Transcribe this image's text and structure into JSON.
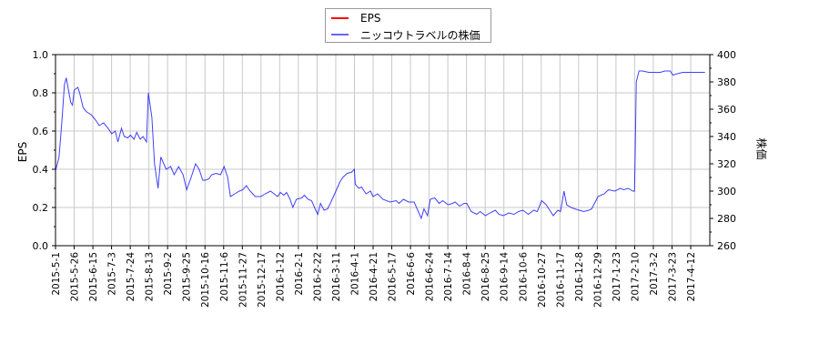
{
  "chart_data": {
    "type": "line",
    "title": "",
    "legend": {
      "position": "top-center",
      "entries": [
        {
          "label": "EPS",
          "color": "#ff0000"
        },
        {
          "label": "ニッコウトラベルの株価",
          "color": "#0000ff"
        }
      ]
    },
    "xlabel": "",
    "ylabel_left": "EPS",
    "ylabel_right": "株価",
    "ylim_left": [
      0.0,
      1.0
    ],
    "yticks_left": [
      "0.0",
      "0.2",
      "0.4",
      "0.6",
      "0.8",
      "1.0"
    ],
    "ylim_right": [
      260,
      400
    ],
    "yticks_right": [
      "260",
      "280",
      "300",
      "320",
      "340",
      "360",
      "380",
      "400"
    ],
    "grid": true,
    "x_tick_labels": [
      "2015-5-1",
      "2015-5-26",
      "2015-6-15",
      "2015-7-3",
      "2015-7-24",
      "2015-8-13",
      "2015-9-2",
      "2015-9-25",
      "2015-10-16",
      "2015-11-6",
      "2015-11-27",
      "2015-12-17",
      "2016-1-12",
      "2016-2-1",
      "2016-2-22",
      "2016-3-11",
      "2016-4-1",
      "2016-4-21",
      "2016-5-17",
      "2016-6-6",
      "2016-6-24",
      "2016-7-14",
      "2016-8-4",
      "2016-8-25",
      "2016-9-14",
      "2016-10-6",
      "2016-10-27",
      "2016-11-17",
      "2016-12-8",
      "2016-12-29",
      "2017-1-23",
      "2017-2-10",
      "2017-3-2",
      "2017-3-23",
      "2017-4-12"
    ],
    "series": [
      {
        "name": "EPS",
        "axis": "left",
        "color": "#ff0000",
        "values": []
      },
      {
        "name": "ニッコウトラベルの株価",
        "axis": "right",
        "color": "#0000ff",
        "points": [
          [
            "2015-5-1",
            315
          ],
          [
            "2015-5-5",
            325
          ],
          [
            "2015-5-8",
            350
          ],
          [
            "2015-5-11",
            378
          ],
          [
            "2015-5-13",
            383
          ],
          [
            "2015-5-15",
            376
          ],
          [
            "2015-5-18",
            365
          ],
          [
            "2015-5-20",
            363
          ],
          [
            "2015-5-22",
            374
          ],
          [
            "2015-5-26",
            376
          ],
          [
            "2015-5-28",
            372
          ],
          [
            "2015-6-1",
            361
          ],
          [
            "2015-6-5",
            358
          ],
          [
            "2015-6-10",
            356
          ],
          [
            "2015-6-15",
            352
          ],
          [
            "2015-6-19",
            348
          ],
          [
            "2015-6-24",
            350
          ],
          [
            "2015-6-29",
            346
          ],
          [
            "2015-7-3",
            342
          ],
          [
            "2015-7-7",
            344
          ],
          [
            "2015-7-10",
            336
          ],
          [
            "2015-7-14",
            346
          ],
          [
            "2015-7-17",
            340
          ],
          [
            "2015-7-21",
            339
          ],
          [
            "2015-7-24",
            341
          ],
          [
            "2015-7-28",
            338
          ],
          [
            "2015-7-31",
            343
          ],
          [
            "2015-8-4",
            338
          ],
          [
            "2015-8-7",
            340
          ],
          [
            "2015-8-11",
            336
          ],
          [
            "2015-8-13",
            372
          ],
          [
            "2015-8-17",
            354
          ],
          [
            "2015-8-20",
            320
          ],
          [
            "2015-8-24",
            302
          ],
          [
            "2015-8-27",
            325
          ],
          [
            "2015-9-2",
            316
          ],
          [
            "2015-9-7",
            318
          ],
          [
            "2015-9-11",
            312
          ],
          [
            "2015-9-16",
            318
          ],
          [
            "2015-9-21",
            312
          ],
          [
            "2015-9-25",
            301
          ],
          [
            "2015-9-30",
            310
          ],
          [
            "2015-10-5",
            320
          ],
          [
            "2015-10-9",
            316
          ],
          [
            "2015-10-13",
            308
          ],
          [
            "2015-10-16",
            308
          ],
          [
            "2015-10-20",
            309
          ],
          [
            "2015-10-23",
            312
          ],
          [
            "2015-10-28",
            313
          ],
          [
            "2015-11-2",
            312
          ],
          [
            "2015-11-6",
            318
          ],
          [
            "2015-11-10",
            310
          ],
          [
            "2015-11-13",
            296
          ],
          [
            "2015-11-18",
            298
          ],
          [
            "2015-11-23",
            300
          ],
          [
            "2015-11-27",
            301
          ],
          [
            "2015-12-1",
            304
          ],
          [
            "2015-12-4",
            301
          ],
          [
            "2015-12-8",
            298
          ],
          [
            "2015-12-11",
            296
          ],
          [
            "2015-12-17",
            296
          ],
          [
            "2015-12-22",
            298
          ],
          [
            "2015-12-28",
            300
          ],
          [
            "2016-1-5",
            296
          ],
          [
            "2016-1-8",
            299
          ],
          [
            "2016-1-12",
            297
          ],
          [
            "2016-1-15",
            299
          ],
          [
            "2016-1-19",
            294
          ],
          [
            "2016-1-22",
            288
          ],
          [
            "2016-1-26",
            294
          ],
          [
            "2016-2-1",
            295
          ],
          [
            "2016-2-4",
            297
          ],
          [
            "2016-2-8",
            294
          ],
          [
            "2016-2-12",
            293
          ],
          [
            "2016-2-16",
            287
          ],
          [
            "2016-2-19",
            283
          ],
          [
            "2016-2-22",
            291
          ],
          [
            "2016-2-26",
            286
          ],
          [
            "2016-3-1",
            287
          ],
          [
            "2016-3-4",
            291
          ],
          [
            "2016-3-11",
            301
          ],
          [
            "2016-3-15",
            307
          ],
          [
            "2016-3-18",
            310
          ],
          [
            "2016-3-23",
            313
          ],
          [
            "2016-3-28",
            314
          ],
          [
            "2016-3-31",
            316
          ],
          [
            "2016-4-1",
            305
          ],
          [
            "2016-4-5",
            302
          ],
          [
            "2016-4-8",
            303
          ],
          [
            "2016-4-13",
            298
          ],
          [
            "2016-4-18",
            300
          ],
          [
            "2016-4-21",
            296
          ],
          [
            "2016-4-26",
            298
          ],
          [
            "2016-5-2",
            294
          ],
          [
            "2016-5-10",
            292
          ],
          [
            "2016-5-17",
            293
          ],
          [
            "2016-5-20",
            291
          ],
          [
            "2016-5-25",
            294
          ],
          [
            "2016-5-31",
            292
          ],
          [
            "2016-6-6",
            292
          ],
          [
            "2016-6-10",
            286
          ],
          [
            "2016-6-14",
            280
          ],
          [
            "2016-6-17",
            287
          ],
          [
            "2016-6-21",
            282
          ],
          [
            "2016-6-24",
            294
          ],
          [
            "2016-6-29",
            295
          ],
          [
            "2016-7-4",
            291
          ],
          [
            "2016-7-8",
            293
          ],
          [
            "2016-7-14",
            290
          ],
          [
            "2016-7-19",
            291
          ],
          [
            "2016-7-22",
            292
          ],
          [
            "2016-7-27",
            289
          ],
          [
            "2016-8-1",
            291
          ],
          [
            "2016-8-4",
            291
          ],
          [
            "2016-8-9",
            285
          ],
          [
            "2016-8-15",
            283
          ],
          [
            "2016-8-19",
            285
          ],
          [
            "2016-8-25",
            282
          ],
          [
            "2016-8-30",
            284
          ],
          [
            "2016-9-5",
            286
          ],
          [
            "2016-9-9",
            283
          ],
          [
            "2016-9-14",
            282
          ],
          [
            "2016-9-20",
            284
          ],
          [
            "2016-9-26",
            283
          ],
          [
            "2016-10-1",
            285
          ],
          [
            "2016-10-6",
            286
          ],
          [
            "2016-10-12",
            283
          ],
          [
            "2016-10-18",
            286
          ],
          [
            "2016-10-22",
            285
          ],
          [
            "2016-10-27",
            293
          ],
          [
            "2016-11-1",
            290
          ],
          [
            "2016-11-5",
            286
          ],
          [
            "2016-11-9",
            282
          ],
          [
            "2016-11-14",
            286
          ],
          [
            "2016-11-17",
            285
          ],
          [
            "2016-11-21",
            300
          ],
          [
            "2016-11-24",
            290
          ],
          [
            "2016-11-29",
            288
          ],
          [
            "2016-12-3",
            287
          ],
          [
            "2016-12-8",
            286
          ],
          [
            "2016-12-13",
            285
          ],
          [
            "2016-12-19",
            286
          ],
          [
            "2016-12-22",
            287
          ],
          [
            "2016-12-26",
            292
          ],
          [
            "2016-12-29",
            296
          ],
          [
            "2017-1-5",
            298
          ],
          [
            "2017-1-10",
            301
          ],
          [
            "2017-1-17",
            300
          ],
          [
            "2017-1-23",
            302
          ],
          [
            "2017-1-27",
            301
          ],
          [
            "2017-2-1",
            302
          ],
          [
            "2017-2-6",
            300
          ],
          [
            "2017-2-8",
            300
          ],
          [
            "2017-2-9",
            335
          ],
          [
            "2017-2-10",
            380
          ],
          [
            "2017-2-13",
            388
          ],
          [
            "2017-2-17",
            388
          ],
          [
            "2017-2-24",
            387
          ],
          [
            "2017-3-2",
            387
          ],
          [
            "2017-3-9",
            387
          ],
          [
            "2017-3-14",
            388
          ],
          [
            "2017-3-20",
            388
          ],
          [
            "2017-3-23",
            385
          ],
          [
            "2017-3-28",
            386
          ],
          [
            "2017-4-3",
            387
          ],
          [
            "2017-4-12",
            387
          ],
          [
            "2017-4-20",
            387
          ],
          [
            "2017-4-28",
            387
          ]
        ]
      }
    ]
  }
}
